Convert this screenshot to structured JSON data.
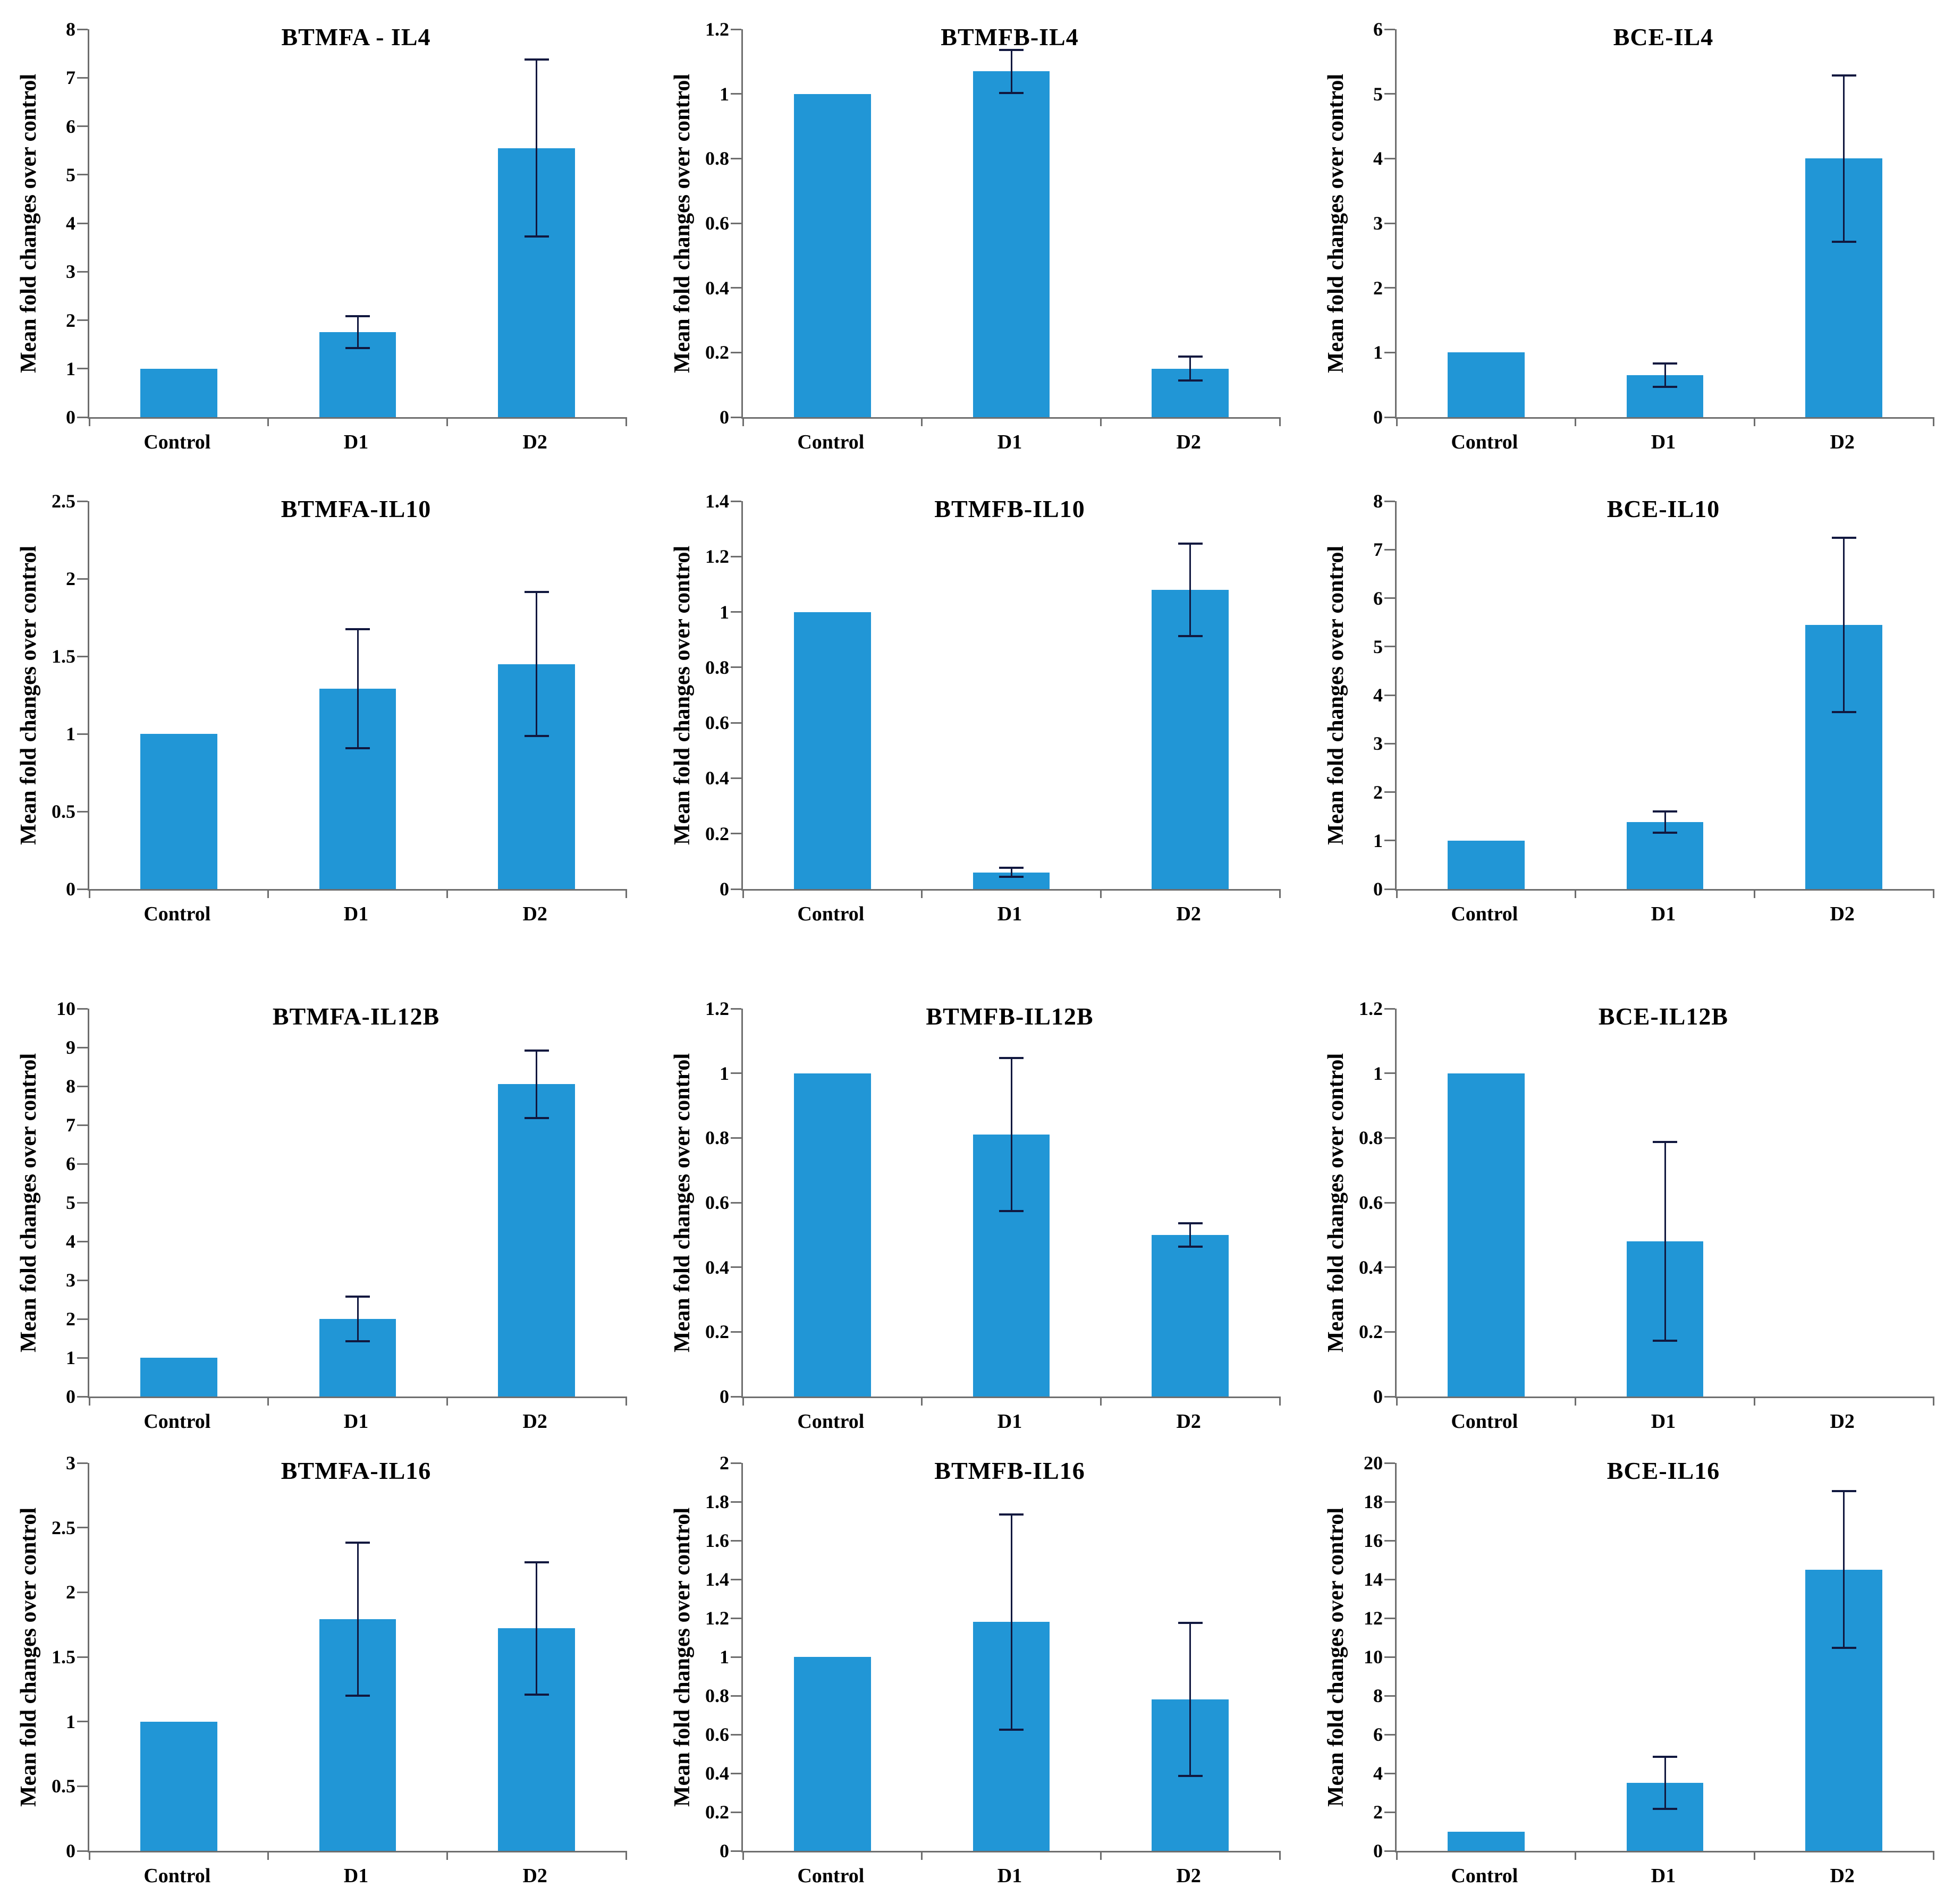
{
  "figure": {
    "description_rows": 4,
    "description_cols": 3,
    "background": "#ffffff"
  },
  "styles": {
    "bar_color": "#2196d6",
    "error_bar_color": "#11183f",
    "axis_color": "#6e6e6e",
    "text_color": "#000000"
  },
  "chart_data": [
    {
      "type": "bar",
      "title": "BTMFA - IL4",
      "ylabel": "Mean fold changes over control",
      "categories": [
        "Control",
        "D1",
        "D2"
      ],
      "values": [
        1,
        1.75,
        5.55
      ],
      "errors": [
        0,
        0.35,
        1.85
      ],
      "ylim": [
        0,
        8
      ],
      "ytick_step": 1,
      "grid": false,
      "legend": "none"
    },
    {
      "type": "bar",
      "title": "BTMFB-IL4",
      "ylabel": "Mean fold changes over control",
      "categories": [
        "Control",
        "D1",
        "D2"
      ],
      "values": [
        1,
        1.07,
        0.15
      ],
      "errors": [
        0,
        0.07,
        0.04
      ],
      "ylim": [
        0,
        1.2
      ],
      "ytick_step": 0.2,
      "grid": false,
      "legend": "none"
    },
    {
      "type": "bar",
      "title": "BCE-IL4",
      "ylabel": "Mean fold changes over control",
      "categories": [
        "Control",
        "D1",
        "D2"
      ],
      "values": [
        1,
        0.65,
        4.0
      ],
      "errors": [
        0,
        0.2,
        1.3
      ],
      "ylim": [
        0,
        6
      ],
      "ytick_step": 1,
      "grid": false,
      "legend": "none"
    },
    {
      "type": "bar",
      "title": "BTMFA-IL10",
      "ylabel": "Mean fold changes over control",
      "categories": [
        "Control",
        "D1",
        "D2"
      ],
      "values": [
        1,
        1.29,
        1.45
      ],
      "errors": [
        0,
        0.39,
        0.47
      ],
      "ylim": [
        0,
        2.5
      ],
      "ytick_step": 0.5,
      "grid": false,
      "legend": "none"
    },
    {
      "type": "bar",
      "title": "BTMFB-IL10",
      "ylabel": "Mean fold changes over control",
      "categories": [
        "Control",
        "D1",
        "D2"
      ],
      "values": [
        1,
        0.06,
        1.08
      ],
      "errors": [
        0,
        0.02,
        0.17
      ],
      "ylim": [
        0,
        1.4
      ],
      "ytick_step": 0.2,
      "grid": false,
      "legend": "none"
    },
    {
      "type": "bar",
      "title": "BCE-IL10",
      "ylabel": "Mean fold changes over control",
      "categories": [
        "Control",
        "D1",
        "D2"
      ],
      "values": [
        1,
        1.38,
        5.45
      ],
      "errors": [
        0,
        0.24,
        1.82
      ],
      "ylim": [
        0,
        8
      ],
      "ytick_step": 1,
      "grid": false,
      "legend": "none"
    },
    {
      "type": "bar",
      "title": "BTMFA-IL12B",
      "ylabel": "Mean fold changes over control",
      "categories": [
        "Control",
        "D1",
        "D2"
      ],
      "values": [
        1,
        2.0,
        8.05
      ],
      "errors": [
        0,
        0.6,
        0.9
      ],
      "ylim": [
        0,
        10
      ],
      "ytick_step": 1,
      "grid": false,
      "legend": "none"
    },
    {
      "type": "bar",
      "title": "BTMFB-IL12B",
      "ylabel": "Mean fold changes over control",
      "categories": [
        "Control",
        "D1",
        "D2"
      ],
      "values": [
        1,
        0.81,
        0.5
      ],
      "errors": [
        0,
        0.24,
        0.04
      ],
      "ylim": [
        0,
        1.2
      ],
      "ytick_step": 0.2,
      "grid": false,
      "legend": "none"
    },
    {
      "type": "bar",
      "title": "BCE-IL12B",
      "ylabel": "Mean fold changes over control",
      "categories": [
        "Control",
        "D1",
        "D2"
      ],
      "values": [
        1,
        0.48,
        0
      ],
      "errors": [
        0,
        0.31,
        0
      ],
      "ylim": [
        0,
        1.2
      ],
      "ytick_step": 0.2,
      "grid": false,
      "legend": "none"
    },
    {
      "type": "bar",
      "title": "BTMFA-IL16",
      "ylabel": "Mean fold changes over control",
      "categories": [
        "Control",
        "D1",
        "D2"
      ],
      "values": [
        1,
        1.79,
        1.72
      ],
      "errors": [
        0,
        0.6,
        0.52
      ],
      "ylim": [
        0,
        3
      ],
      "ytick_step": 0.5,
      "grid": false,
      "legend": "none"
    },
    {
      "type": "bar",
      "title": "BTMFB-IL16",
      "ylabel": "Mean fold changes over control",
      "categories": [
        "Control",
        "D1",
        "D2"
      ],
      "values": [
        1,
        1.18,
        0.78
      ],
      "errors": [
        0,
        0.56,
        0.4
      ],
      "ylim": [
        0,
        2
      ],
      "ytick_step": 0.2,
      "grid": false,
      "legend": "none"
    },
    {
      "type": "bar",
      "title": "BCE-IL16",
      "ylabel": "Mean fold changes over control",
      "categories": [
        "Control",
        "D1",
        "D2"
      ],
      "values": [
        1,
        3.5,
        14.5
      ],
      "errors": [
        0,
        1.4,
        4.1
      ],
      "ylim": [
        0,
        20
      ],
      "ytick_step": 2,
      "grid": false,
      "legend": "none"
    }
  ]
}
